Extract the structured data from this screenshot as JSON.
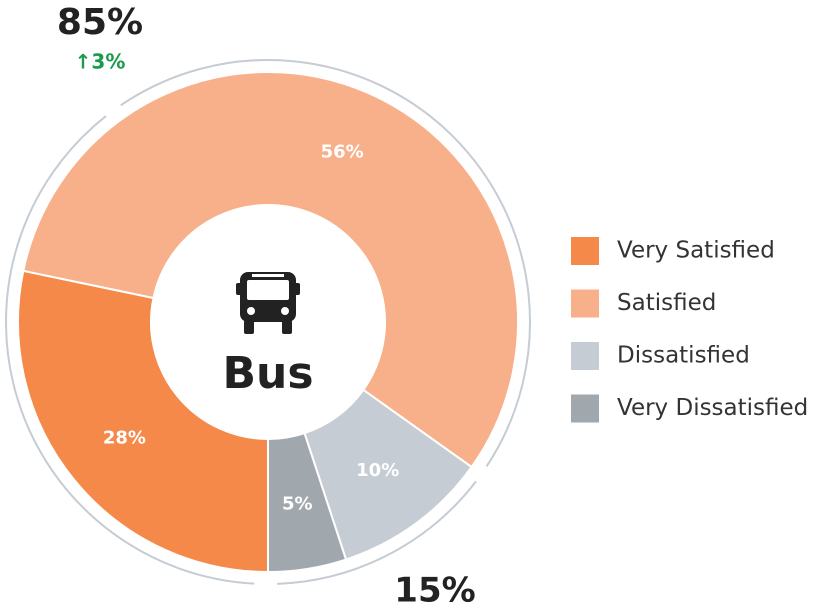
{
  "chart_data": {
    "type": "donut",
    "center_label": "Bus",
    "categories": [
      "Very Satisfied",
      "Satisfied",
      "Dissatisfied",
      "Very Dissatisfied"
    ],
    "values": [
      28,
      56,
      10,
      5
    ],
    "value_labels": [
      "28%",
      "56%",
      "10%",
      "5%"
    ],
    "colors": [
      "#f4894a",
      "#f8b08a",
      "#c5ccd3",
      "#a1a8ad"
    ],
    "annotations": [
      {
        "text": "85%"
      },
      {
        "text": "↑3%"
      },
      {
        "text": "15%"
      }
    ],
    "legend": "right"
  }
}
